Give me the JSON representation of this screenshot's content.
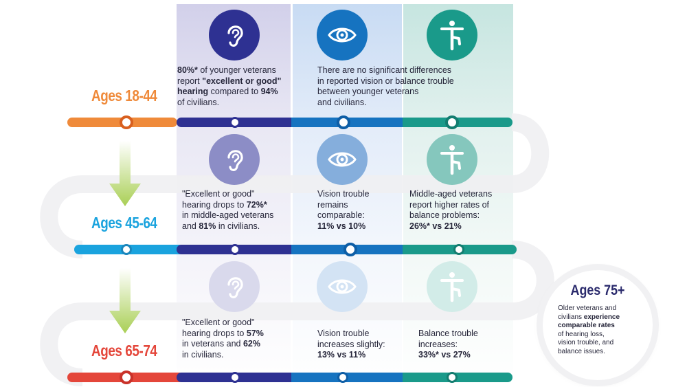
{
  "colors": {
    "orange": "#ef8a3a",
    "sky": "#1aa3de",
    "red": "#e4463a",
    "hearing": "#2e3192",
    "vision": "#1673c0",
    "balance": "#1a9a8a",
    "arrow": "#b5d56a"
  },
  "icons": {
    "hearing": "ear-icon",
    "vision": "eye-icon",
    "balance": "balance-figure-icon"
  },
  "rows": [
    {
      "age_label": "Ages 18-44",
      "hearing": {
        "line1_bold": "80%*",
        "line1_rest": " of younger veterans",
        "line2_pre": "report ",
        "line2_bold": "\"excellent or good\"",
        "line3_bold": "hearing",
        "line3_rest": " compared to ",
        "line3_bold2": "94%",
        "line4": "of civilians."
      },
      "shared_text_lines": [
        "There are no significant differences",
        "in reported vision or balance trouble",
        "between younger veterans",
        "and civilians."
      ]
    },
    {
      "age_label": "Ages 45-64",
      "hearing": {
        "line1": "\"Excellent or good\"",
        "line2_pre": "hearing drops to ",
        "line2_bold": "72%*",
        "line3": "in middle-aged veterans",
        "line4_pre": "and ",
        "line4_bold": "81%",
        "line4_rest": " in civilians."
      },
      "vision_lines": [
        "Vision trouble",
        "remains",
        "comparable:"
      ],
      "vision_stat": "11% vs 10%",
      "balance_lines": [
        "Middle-aged veterans",
        "report higher rates of",
        "balance problems:"
      ],
      "balance_stat": "26%* vs 21%"
    },
    {
      "age_label": "Ages 65-74",
      "hearing": {
        "line1": "\"Excellent or good\"",
        "line2_pre": "hearing drops to ",
        "line2_bold": "57%",
        "line3_pre": "in veterans and ",
        "line3_bold": "62%",
        "line4": "in civilians."
      },
      "vision_lines": [
        "Vision trouble",
        "increases slightly:"
      ],
      "vision_stat": "13% vs 11%",
      "balance_lines": [
        "Balance trouble",
        "increases:"
      ],
      "balance_stat": "33%* vs 27%"
    }
  ],
  "ages_75": {
    "title": "Ages 75+",
    "line1": "Older veterans and",
    "line2_pre": "civilians ",
    "line2_bold": "experience",
    "line3_bold": "comparable rates",
    "line4": "of hearing loss,",
    "line5": "vision trouble, and",
    "line6": "balance issues."
  }
}
